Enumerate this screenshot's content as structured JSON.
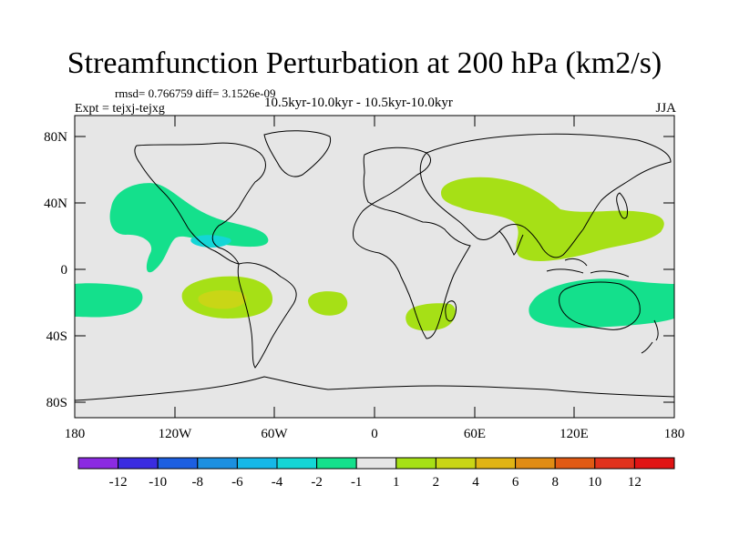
{
  "title": "Streamfunction Perturbation at 200 hPa (km2/s)",
  "stats": "rmsd= 0.766759 diff= 3.1526e-09",
  "experiment": "Expt = tejxj-tejxg",
  "period": "10.5kyr-10.0kyr - 10.5kyr-10.0kyr",
  "season": "JJA",
  "lat_labels": [
    "80N",
    "40N",
    "0",
    "40S",
    "80S"
  ],
  "lon_labels": [
    "180",
    "120W",
    "60W",
    "0",
    "60E",
    "120E",
    "180"
  ],
  "colorbar": {
    "labels": [
      "-12",
      "-10",
      "-8",
      "-6",
      "-4",
      "-2",
      "-1",
      "1",
      "2",
      "4",
      "6",
      "8",
      "10",
      "12"
    ],
    "colors": [
      "#8b2be2",
      "#3a2ce0",
      "#1c5fe0",
      "#1c90e0",
      "#16b8e8",
      "#14d6d6",
      "#14e08c",
      "#e6e6e6",
      "#a6e016",
      "#c9d616",
      "#e0b414",
      "#e08c14",
      "#e05a14",
      "#e0321c",
      "#e01414"
    ]
  },
  "legend_colors": {
    "land_bg": "#e6e6e6",
    "neg_1_2": "#14e08c",
    "neg_2_4": "#14d6d6",
    "pos_1_2": "#a6e016",
    "pos_2_4": "#c9d616"
  }
}
